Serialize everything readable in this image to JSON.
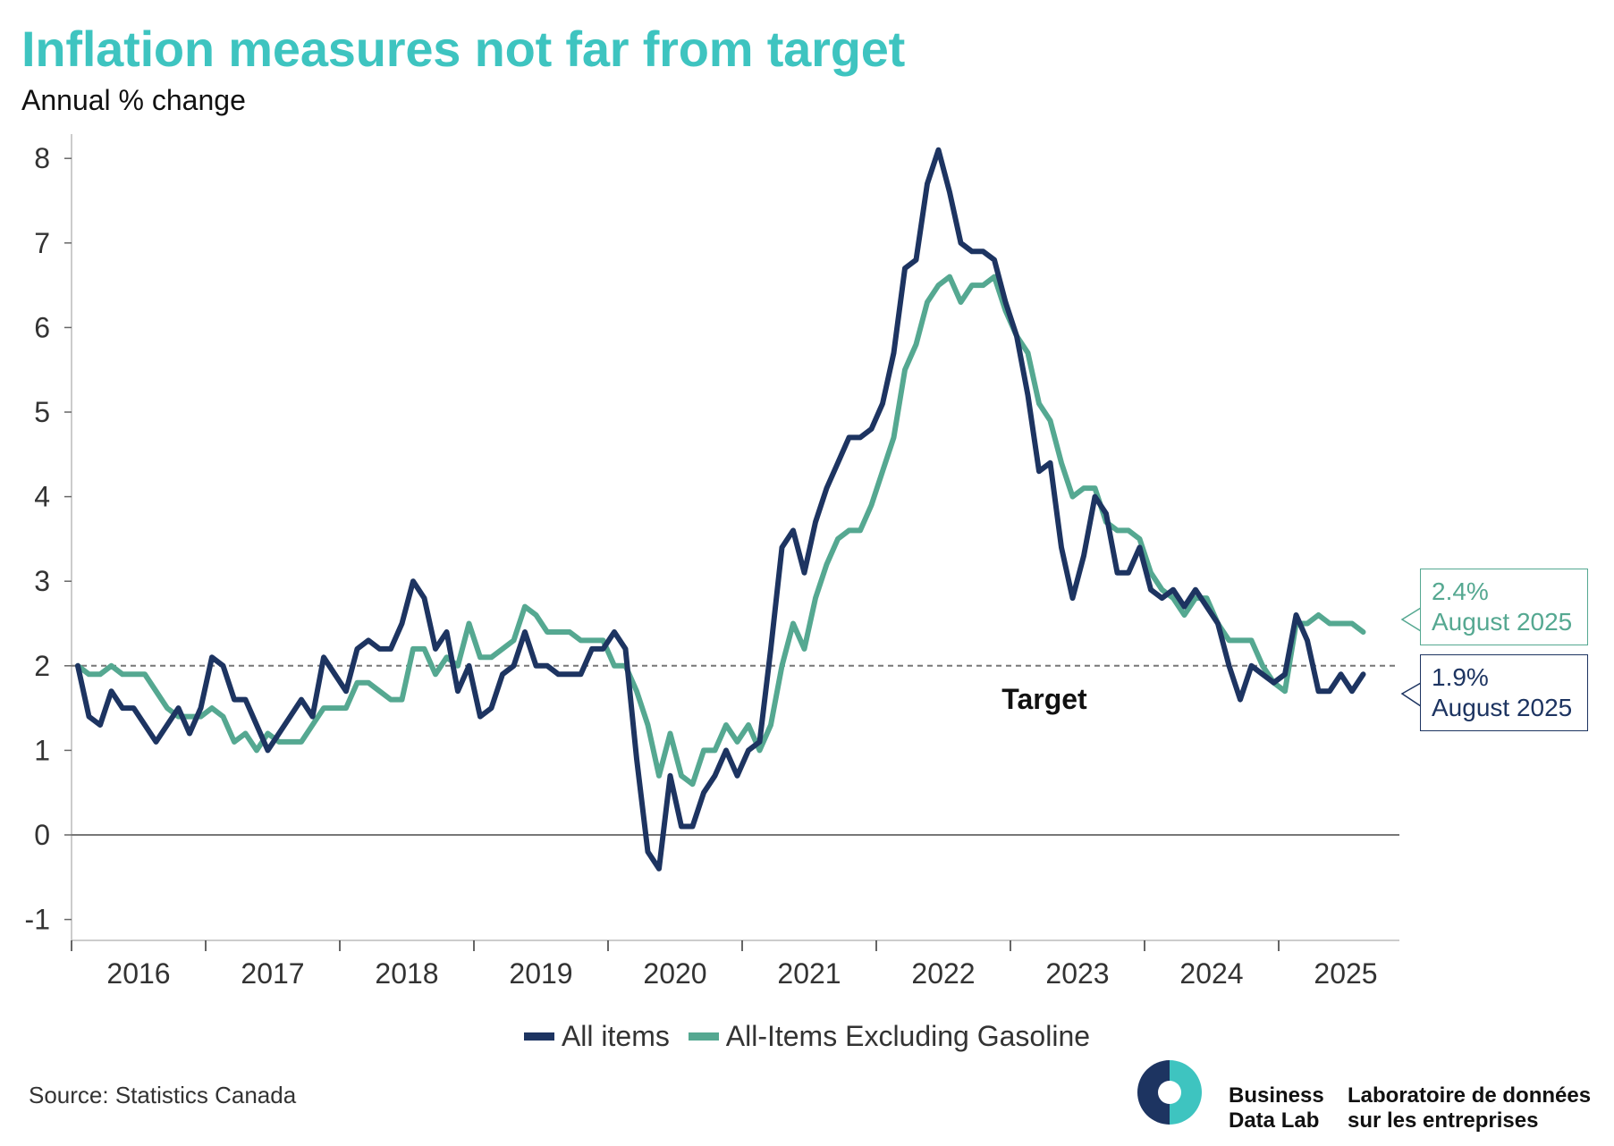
{
  "header": {
    "title": "Inflation measures not far from target",
    "subtitle": "Annual % change"
  },
  "target_label": "Target",
  "callouts": {
    "excl_gas_value": "2.4%",
    "excl_gas_date": "August 2025",
    "all_items_value": "1.9%",
    "all_items_date": "August 2025"
  },
  "source": "Source: Statistics Canada",
  "brand": {
    "en_line1": "Business",
    "en_line2": "Data Lab",
    "fr_line1": "Laboratoire de données",
    "fr_line2": "sur les entreprises"
  },
  "chart_data": {
    "type": "line",
    "title": "Inflation measures not far from target",
    "ylabel": "Annual % change",
    "ylim": [
      -1.2,
      8.3
    ],
    "yticks": [
      -1,
      0,
      1,
      2,
      3,
      4,
      5,
      6,
      7,
      8
    ],
    "x_start": "2016-01",
    "x_end": "2025-08",
    "x_frequency": "monthly",
    "year_labels": [
      "2016",
      "2017",
      "2018",
      "2019",
      "2020",
      "2021",
      "2022",
      "2023",
      "2024",
      "2025"
    ],
    "target_line": 2,
    "grid": false,
    "legend_position": "bottom",
    "series": [
      {
        "name": "All items",
        "color": "#1d3461",
        "values": [
          2.0,
          1.4,
          1.3,
          1.7,
          1.5,
          1.5,
          1.3,
          1.1,
          1.3,
          1.5,
          1.2,
          1.5,
          2.1,
          2.0,
          1.6,
          1.6,
          1.3,
          1.0,
          1.2,
          1.4,
          1.6,
          1.4,
          2.1,
          1.9,
          1.7,
          2.2,
          2.3,
          2.2,
          2.2,
          2.5,
          3.0,
          2.8,
          2.2,
          2.4,
          1.7,
          2.0,
          1.4,
          1.5,
          1.9,
          2.0,
          2.4,
          2.0,
          2.0,
          1.9,
          1.9,
          1.9,
          2.2,
          2.2,
          2.4,
          2.2,
          0.9,
          -0.2,
          -0.4,
          0.7,
          0.1,
          0.1,
          0.5,
          0.7,
          1.0,
          0.7,
          1.0,
          1.1,
          2.2,
          3.4,
          3.6,
          3.1,
          3.7,
          4.1,
          4.4,
          4.7,
          4.7,
          4.8,
          5.1,
          5.7,
          6.7,
          6.8,
          7.7,
          8.1,
          7.6,
          7.0,
          6.9,
          6.9,
          6.8,
          6.3,
          5.9,
          5.2,
          4.3,
          4.4,
          3.4,
          2.8,
          3.3,
          4.0,
          3.8,
          3.1,
          3.1,
          3.4,
          2.9,
          2.8,
          2.9,
          2.7,
          2.9,
          2.7,
          2.5,
          2.0,
          1.6,
          2.0,
          1.9,
          1.8,
          1.9,
          2.6,
          2.3,
          1.7,
          1.7,
          1.9,
          1.7,
          1.9
        ]
      },
      {
        "name": "All-Items Excluding Gasoline",
        "color": "#55a891",
        "values": [
          2.0,
          1.9,
          1.9,
          2.0,
          1.9,
          1.9,
          1.9,
          1.7,
          1.5,
          1.4,
          1.4,
          1.4,
          1.5,
          1.4,
          1.1,
          1.2,
          1.0,
          1.2,
          1.1,
          1.1,
          1.1,
          1.3,
          1.5,
          1.5,
          1.5,
          1.8,
          1.8,
          1.7,
          1.6,
          1.6,
          2.2,
          2.2,
          1.9,
          2.1,
          2.0,
          2.5,
          2.1,
          2.1,
          2.2,
          2.3,
          2.7,
          2.6,
          2.4,
          2.4,
          2.4,
          2.3,
          2.3,
          2.3,
          2.0,
          2.0,
          1.7,
          1.3,
          0.7,
          1.2,
          0.7,
          0.6,
          1.0,
          1.0,
          1.3,
          1.1,
          1.3,
          1.0,
          1.3,
          2.0,
          2.5,
          2.2,
          2.8,
          3.2,
          3.5,
          3.6,
          3.6,
          3.9,
          4.3,
          4.7,
          5.5,
          5.8,
          6.3,
          6.5,
          6.6,
          6.3,
          6.5,
          6.5,
          6.6,
          6.2,
          5.9,
          5.7,
          5.1,
          4.9,
          4.4,
          4.0,
          4.1,
          4.1,
          3.7,
          3.6,
          3.6,
          3.5,
          3.1,
          2.9,
          2.8,
          2.6,
          2.8,
          2.8,
          2.5,
          2.3,
          2.3,
          2.3,
          2.0,
          1.8,
          1.7,
          2.5,
          2.5,
          2.6,
          2.5,
          2.5,
          2.5,
          2.4
        ]
      }
    ]
  }
}
